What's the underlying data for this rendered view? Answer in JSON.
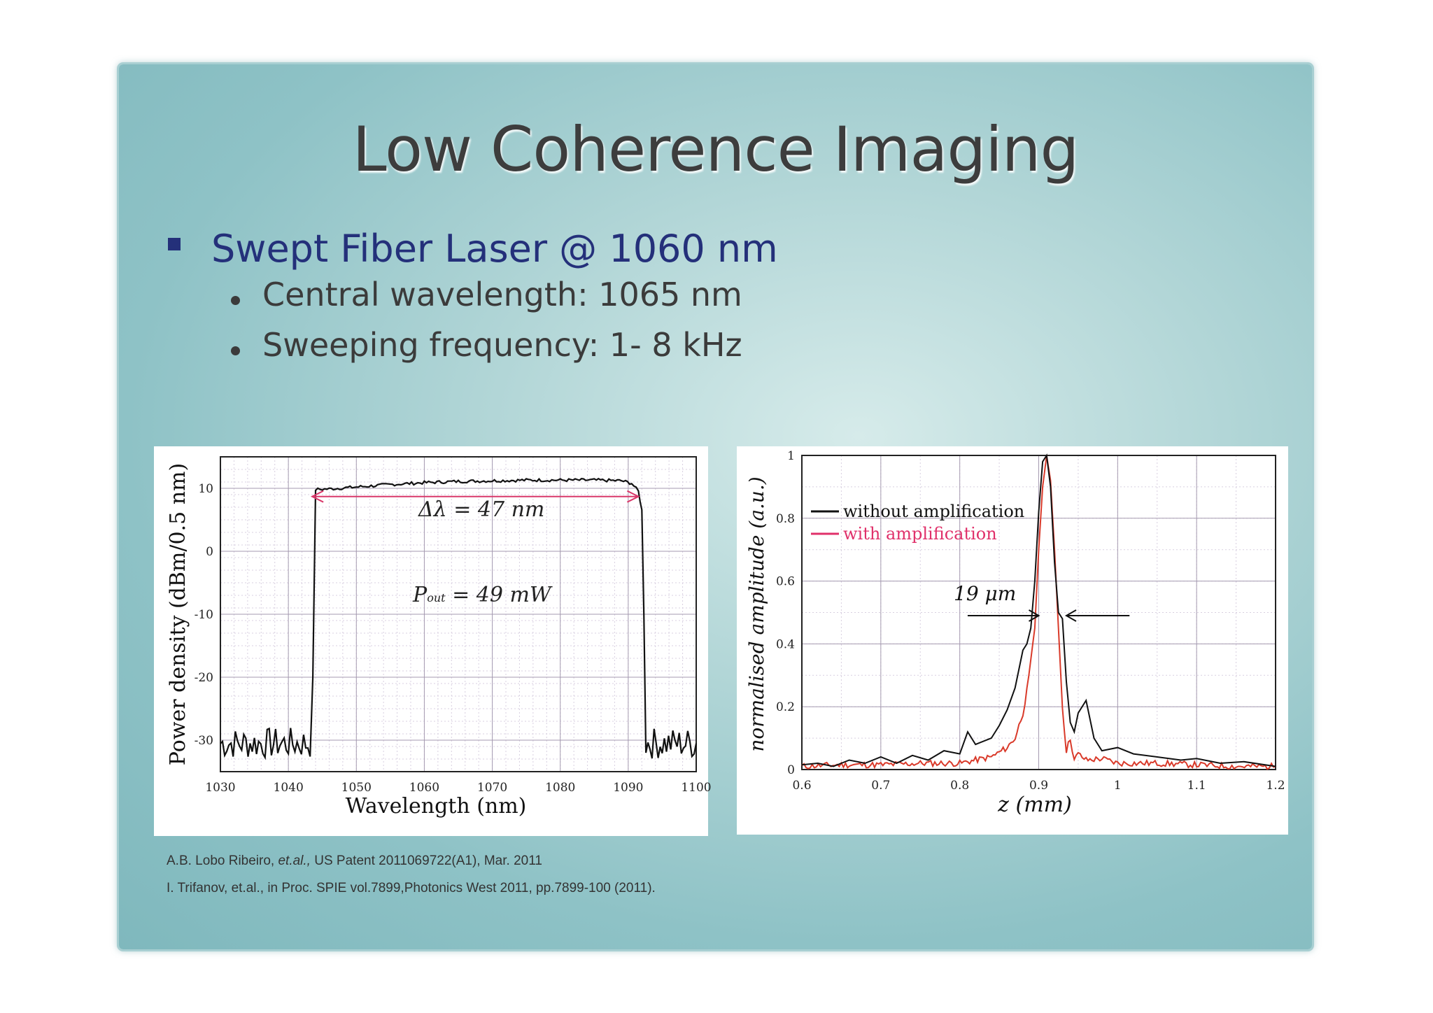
{
  "slide": {
    "title": "Low Coherence Imaging",
    "bullet1": "Swept Fiber Laser @ 1060 nm",
    "sub_bullets": [
      "Central wavelength: 1065 nm",
      "Sweeping frequency: 1- 8 kHz"
    ],
    "references": {
      "ref1_authors": "A.B. Lobo Ribeiro, ",
      "ref1_etal": "et.al.,",
      "ref1_rest": " US Patent 2011069722(A1), Mar. 2011",
      "ref2": "I. Trifanov, et.al., in Proc. SPIE vol.7899,Photonics West 2011, pp.7899-100 (2011)."
    },
    "colors": {
      "title": "#3d3d3d",
      "bullet1": "#24307a",
      "accent_arrow": "#d9386a",
      "red_series": "#d93a2a",
      "pink_label": "#e0306a"
    }
  },
  "chart_data": [
    {
      "type": "line",
      "xlabel": "Wavelength (nm)",
      "ylabel": "Power density (dBm/0.5 nm)",
      "xlim": [
        1030,
        1100
      ],
      "ylim": [
        -35,
        15
      ],
      "xticks": [
        "1030",
        "1040",
        "1050",
        "1060",
        "1070",
        "1080",
        "1090",
        "1100"
      ],
      "yticks": [
        "10",
        "0",
        "-10",
        "-20",
        "-30"
      ],
      "grid": true,
      "series": [
        {
          "x": [
            1030,
            1035,
            1040,
            1043.2,
            1043.6,
            1044,
            1046,
            1050,
            1055,
            1060,
            1065,
            1070,
            1075,
            1080,
            1085,
            1089,
            1090.5,
            1091.5,
            1092,
            1092.3,
            1092.6,
            1095,
            1100
          ],
          "y": [
            -30.5,
            -30.5,
            -30.5,
            -30.5,
            -20,
            9.8,
            9.9,
            10.2,
            10.6,
            10.9,
            11.1,
            11.2,
            11.3,
            11.3,
            11.3,
            11.2,
            10.8,
            9.5,
            6.5,
            -10,
            -30.5,
            -30.5,
            -30.5
          ]
        }
      ],
      "annotations": {
        "bandwidth_prefix": "Δλ",
        "bandwidth_value": " = 47 nm",
        "power_p": "P",
        "power_sub": "out",
        "power_value": " = 49 mW",
        "arrow_x": [
          1043.5,
          1091.5
        ],
        "arrow_y": 8.7
      }
    },
    {
      "type": "line",
      "xlabel": "z (mm)",
      "ylabel": "normalised amplitude (a.u.)",
      "xlim": [
        0.6,
        1.2
      ],
      "ylim": [
        0,
        1
      ],
      "xticks": [
        "0.6",
        "0.7",
        "0.8",
        "0.9",
        "1",
        "1.1",
        "1.2"
      ],
      "yticks": [
        "0",
        "0.2",
        "0.4",
        "0.6",
        "0.8",
        "1"
      ],
      "grid": true,
      "series": [
        {
          "name": "without amplification",
          "x": [
            0.6,
            0.62,
            0.64,
            0.66,
            0.68,
            0.7,
            0.72,
            0.74,
            0.76,
            0.78,
            0.8,
            0.81,
            0.82,
            0.84,
            0.85,
            0.86,
            0.87,
            0.88,
            0.885,
            0.89,
            0.895,
            0.9,
            0.905,
            0.91,
            0.915,
            0.92,
            0.925,
            0.93,
            0.935,
            0.94,
            0.945,
            0.95,
            0.96,
            0.97,
            0.98,
            1.0,
            1.02,
            1.05,
            1.08,
            1.1,
            1.13,
            1.16,
            1.2
          ],
          "y": [
            0.015,
            0.02,
            0.01,
            0.03,
            0.02,
            0.04,
            0.02,
            0.045,
            0.03,
            0.06,
            0.05,
            0.12,
            0.08,
            0.1,
            0.14,
            0.19,
            0.26,
            0.38,
            0.4,
            0.45,
            0.6,
            0.82,
            0.98,
            1.0,
            0.9,
            0.66,
            0.5,
            0.48,
            0.28,
            0.15,
            0.12,
            0.18,
            0.22,
            0.1,
            0.06,
            0.07,
            0.05,
            0.04,
            0.03,
            0.035,
            0.02,
            0.025,
            0.01
          ]
        },
        {
          "name": "with amplification",
          "x": [
            0.6,
            0.65,
            0.7,
            0.75,
            0.8,
            0.82,
            0.84,
            0.86,
            0.87,
            0.88,
            0.885,
            0.89,
            0.895,
            0.9,
            0.905,
            0.91,
            0.915,
            0.92,
            0.925,
            0.93,
            0.935,
            0.94,
            0.945,
            0.95,
            0.96,
            0.98,
            1.0,
            1.05,
            1.1,
            1.15,
            1.2
          ],
          "y": [
            0.01,
            0.015,
            0.015,
            0.02,
            0.02,
            0.03,
            0.04,
            0.07,
            0.1,
            0.18,
            0.25,
            0.35,
            0.45,
            0.7,
            0.9,
            1.0,
            0.92,
            0.7,
            0.45,
            0.2,
            0.06,
            0.1,
            0.03,
            0.05,
            0.03,
            0.035,
            0.02,
            0.02,
            0.015,
            0.01,
            0.01
          ]
        }
      ],
      "legend_position": "top-left",
      "annotations": {
        "width_label": "19 μm",
        "arrow_y": 0.49,
        "left_arrow_x": [
          0.81,
          0.9
        ],
        "right_arrow_x": [
          0.935,
          1.015
        ]
      }
    }
  ]
}
